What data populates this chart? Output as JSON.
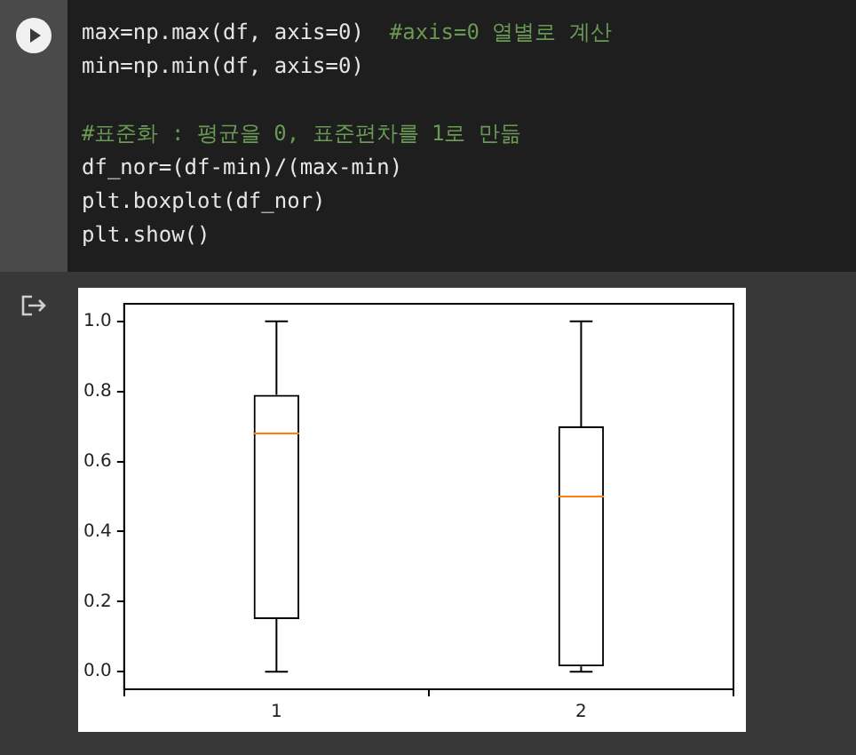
{
  "chart_data": {
    "type": "box",
    "categories": [
      "1",
      "2"
    ],
    "boxes": [
      {
        "low": 0,
        "q1": 0.15,
        "median": 0.68,
        "q3": 0.79,
        "high": 1.0
      },
      {
        "low": 0,
        "q1": 0.015,
        "median": 0.5,
        "q3": 0.7,
        "high": 1.0
      }
    ],
    "ylim": [
      -0.05,
      1.05
    ],
    "yticks": [
      {
        "value": 0,
        "label": "0.0"
      },
      {
        "value": 0.2,
        "label": "0.2"
      },
      {
        "value": 0.4,
        "label": "0.4"
      },
      {
        "value": 0.6,
        "label": "0.6"
      },
      {
        "value": 0.8,
        "label": "0.8"
      },
      {
        "value": 1.0,
        "label": "1.0"
      }
    ],
    "grid": false,
    "legend": false,
    "annotations": [
      "max=np.max(df, axis=0)  #axis=0 열별로 계산",
      "min=np.min(df, axis=0)",
      "#표준화 : 평균을 0, 표준편차를 1로 만듦",
      "df_nor=(df-min)/(max-min)",
      "plt.boxplot(df_nor)",
      "plt.show()"
    ]
  }
}
